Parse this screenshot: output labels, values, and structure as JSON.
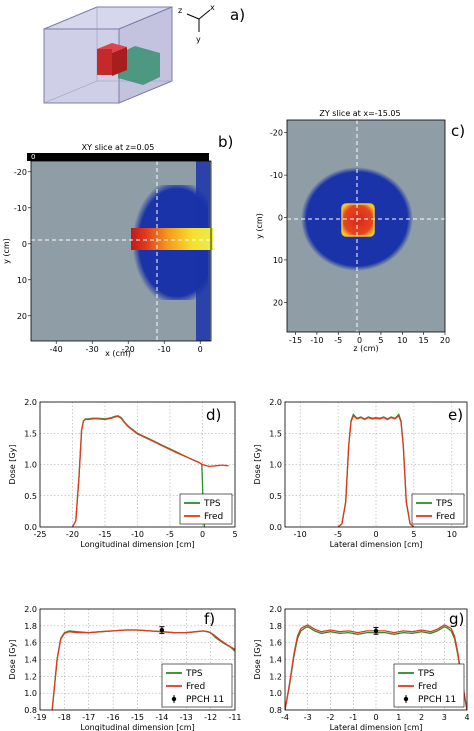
{
  "panel_labels": {
    "a": "a)",
    "b": "b)",
    "c": "c)",
    "d": "d)",
    "e": "e)",
    "f": "f)",
    "g": "g)"
  },
  "axes_triad": {
    "x": "x",
    "y": "y",
    "z": "z"
  },
  "colors": {
    "tps": "#2e8b2e",
    "fred": "#e03a1e",
    "maskgray": "#8f9ea6",
    "beam": "#1a33a8",
    "panel_bg": "#ffffff"
  },
  "chart_data": [
    {
      "id": "b",
      "type": "heatmap",
      "title": "XY slice at z=0.05",
      "xlabel": "x (cm)",
      "ylabel": "y (cm)",
      "xlim": [
        -47,
        3
      ],
      "ylim": [
        27,
        -23
      ],
      "xticks": [
        -40,
        -30,
        -20,
        -10,
        0
      ],
      "yticks": [
        -20,
        -10,
        0,
        10,
        20
      ],
      "target_box": {
        "x": [
          -18,
          0
        ],
        "y": [
          -2,
          2
        ]
      }
    },
    {
      "id": "c",
      "type": "heatmap",
      "title": "ZY slice at x=-15.05",
      "xlabel": "z (cm)",
      "ylabel": "y (cm)",
      "xlim": [
        -17,
        20
      ],
      "ylim": [
        27,
        -23
      ],
      "xticks": [
        -15,
        -10,
        -5,
        0,
        5,
        10,
        15,
        20
      ],
      "yticks": [
        -20,
        -10,
        0,
        10,
        20
      ],
      "target_box": {
        "x": [
          -3,
          3
        ],
        "y": [
          -3,
          3
        ]
      }
    },
    {
      "id": "d",
      "type": "line",
      "xlabel": "Longitudinal dimension [cm]",
      "ylabel": "Dose [Gy]",
      "xlim": [
        -25,
        5
      ],
      "ylim": [
        0,
        2
      ],
      "xticks": [
        -25,
        -20,
        -15,
        -10,
        -5,
        0,
        5
      ],
      "yticks": [
        0.0,
        0.5,
        1.0,
        1.5,
        2.0
      ],
      "legend_loc": "lower-right",
      "series": [
        {
          "name": "TPS",
          "x": [
            -20,
            -19.5,
            -19,
            -18.6,
            -18.3,
            -18,
            -17.5,
            -17,
            -16,
            -15,
            -14,
            -13.5,
            -13,
            -12.5,
            -12,
            -11.5,
            -11,
            -10,
            -8,
            -6,
            -4,
            -2,
            -0.5,
            -0.1,
            0,
            0.1,
            0.3
          ],
          "y": [
            0,
            0.1,
            0.8,
            1.55,
            1.7,
            1.73,
            1.73,
            1.74,
            1.74,
            1.73,
            1.75,
            1.77,
            1.78,
            1.75,
            1.68,
            1.62,
            1.58,
            1.5,
            1.4,
            1.3,
            1.2,
            1.1,
            1.03,
            1.0,
            0.7,
            0.2,
            0
          ]
        },
        {
          "name": "Fred",
          "x": [
            -20,
            -19.5,
            -19,
            -18.6,
            -18.3,
            -18,
            -17.5,
            -17,
            -16,
            -15,
            -14,
            -13.5,
            -13,
            -12.5,
            -12,
            -11.5,
            -11,
            -10,
            -8,
            -6,
            -4,
            -2,
            -0.5,
            0,
            1,
            2,
            3,
            4
          ],
          "y": [
            0,
            0.1,
            0.8,
            1.55,
            1.7,
            1.72,
            1.72,
            1.73,
            1.73,
            1.72,
            1.74,
            1.76,
            1.77,
            1.74,
            1.67,
            1.61,
            1.57,
            1.49,
            1.39,
            1.29,
            1.19,
            1.1,
            1.03,
            1.0,
            0.97,
            0.98,
            0.99,
            0.98
          ]
        }
      ]
    },
    {
      "id": "e",
      "type": "line",
      "xlabel": "Lateral dimension [cm]",
      "ylabel": "Dose [Gy]",
      "xlim": [
        -12,
        12
      ],
      "ylim": [
        0,
        2
      ],
      "xticks": [
        -10,
        -5,
        0,
        5,
        10
      ],
      "yticks": [
        0.0,
        0.5,
        1.0,
        1.5,
        2.0
      ],
      "legend_loc": "lower-right",
      "series": [
        {
          "name": "TPS",
          "x": [
            -5,
            -4.5,
            -4,
            -3.6,
            -3.3,
            -3,
            -2.5,
            -2,
            -1.5,
            -1,
            -0.5,
            0,
            0.5,
            1,
            1.5,
            2,
            2.5,
            3,
            3.3,
            3.6,
            4,
            4.5,
            5
          ],
          "y": [
            0,
            0.05,
            0.4,
            1.3,
            1.7,
            1.8,
            1.74,
            1.76,
            1.73,
            1.76,
            1.74,
            1.75,
            1.74,
            1.76,
            1.73,
            1.76,
            1.74,
            1.8,
            1.7,
            1.3,
            0.4,
            0.05,
            0
          ]
        },
        {
          "name": "Fred",
          "x": [
            -5,
            -4.5,
            -4,
            -3.6,
            -3.3,
            -3,
            -2.5,
            -2,
            -1.5,
            -1,
            -0.5,
            0,
            0.5,
            1,
            1.5,
            2,
            2.5,
            3,
            3.3,
            3.6,
            4,
            4.5,
            5
          ],
          "y": [
            0,
            0.05,
            0.4,
            1.3,
            1.68,
            1.78,
            1.73,
            1.75,
            1.72,
            1.75,
            1.73,
            1.74,
            1.73,
            1.75,
            1.72,
            1.75,
            1.73,
            1.78,
            1.68,
            1.3,
            0.4,
            0.05,
            0
          ]
        }
      ]
    },
    {
      "id": "f",
      "type": "line",
      "xlabel": "Longitudinal dimension [cm]",
      "ylabel": "Dose [Gy]",
      "xlim": [
        -19,
        -11
      ],
      "ylim": [
        0.8,
        2.0
      ],
      "xticks": [
        -19,
        -18,
        -17,
        -16,
        -15,
        -14,
        -13,
        -12,
        -11
      ],
      "yticks": [
        0.8,
        1.0,
        1.2,
        1.4,
        1.6,
        1.8,
        2.0
      ],
      "legend_loc": "lower-right",
      "series": [
        {
          "name": "TPS",
          "x": [
            -18.5,
            -18.3,
            -18.15,
            -18.0,
            -17.8,
            -17.5,
            -17,
            -16.5,
            -16,
            -15.5,
            -15,
            -14.5,
            -14,
            -13.5,
            -13,
            -12.6,
            -12.3,
            -12.0,
            -11.8,
            -11.5,
            -11.2,
            -11
          ],
          "y": [
            0.8,
            1.4,
            1.65,
            1.72,
            1.74,
            1.73,
            1.72,
            1.73,
            1.74,
            1.75,
            1.75,
            1.74,
            1.73,
            1.72,
            1.72,
            1.73,
            1.74,
            1.72,
            1.66,
            1.6,
            1.55,
            1.5
          ]
        },
        {
          "name": "Fred",
          "x": [
            -18.5,
            -18.3,
            -18.15,
            -18.0,
            -17.8,
            -17.5,
            -17,
            -16.5,
            -16,
            -15.5,
            -15,
            -14.5,
            -14,
            -13.5,
            -13,
            -12.6,
            -12.3,
            -12.1,
            -11.9,
            -11.6,
            -11.3,
            -11
          ],
          "y": [
            0.8,
            1.4,
            1.64,
            1.71,
            1.73,
            1.72,
            1.72,
            1.73,
            1.74,
            1.75,
            1.75,
            1.74,
            1.73,
            1.72,
            1.72,
            1.73,
            1.74,
            1.73,
            1.7,
            1.63,
            1.57,
            1.52
          ]
        },
        {
          "name": "PPCH 11",
          "type": "errorbar",
          "x": [
            -14
          ],
          "y": [
            1.75
          ],
          "yerr": [
            0.04
          ]
        }
      ]
    },
    {
      "id": "g",
      "type": "line",
      "xlabel": "Lateral dimension [cm]",
      "ylabel": "Dose [Gy]",
      "xlim": [
        -4,
        4
      ],
      "ylim": [
        0.8,
        2.0
      ],
      "xticks": [
        -4,
        -3,
        -2,
        -1,
        0,
        1,
        2,
        3,
        4
      ],
      "yticks": [
        0.8,
        1.0,
        1.2,
        1.4,
        1.6,
        1.8,
        2.0
      ],
      "legend_loc": "lower-right",
      "series": [
        {
          "name": "TPS",
          "x": [
            -4,
            -3.8,
            -3.6,
            -3.45,
            -3.3,
            -3.1,
            -3,
            -2.7,
            -2.4,
            -2,
            -1.6,
            -1.2,
            -0.8,
            -0.4,
            0,
            0.4,
            0.8,
            1.2,
            1.6,
            2,
            2.4,
            2.7,
            3,
            3.1,
            3.3,
            3.45,
            3.6,
            3.8,
            4
          ],
          "y": [
            0.8,
            1.1,
            1.45,
            1.65,
            1.74,
            1.78,
            1.79,
            1.74,
            1.71,
            1.73,
            1.71,
            1.72,
            1.7,
            1.72,
            1.72,
            1.72,
            1.7,
            1.72,
            1.71,
            1.73,
            1.71,
            1.74,
            1.79,
            1.78,
            1.74,
            1.65,
            1.45,
            1.1,
            0.8
          ]
        },
        {
          "name": "Fred",
          "x": [
            -4,
            -3.8,
            -3.6,
            -3.45,
            -3.3,
            -3.1,
            -3,
            -2.7,
            -2.4,
            -2,
            -1.6,
            -1.2,
            -0.8,
            -0.4,
            0,
            0.4,
            0.8,
            1.2,
            1.6,
            2,
            2.4,
            2.7,
            3,
            3.1,
            3.3,
            3.45,
            3.6,
            3.8,
            4
          ],
          "y": [
            0.8,
            1.12,
            1.48,
            1.68,
            1.77,
            1.8,
            1.81,
            1.76,
            1.73,
            1.75,
            1.73,
            1.74,
            1.72,
            1.74,
            1.74,
            1.74,
            1.72,
            1.74,
            1.73,
            1.75,
            1.73,
            1.76,
            1.81,
            1.8,
            1.77,
            1.68,
            1.48,
            1.12,
            0.8
          ]
        },
        {
          "name": "PPCH 11",
          "type": "errorbar",
          "x": [
            0
          ],
          "y": [
            1.74
          ],
          "yerr": [
            0.04
          ]
        }
      ]
    }
  ]
}
